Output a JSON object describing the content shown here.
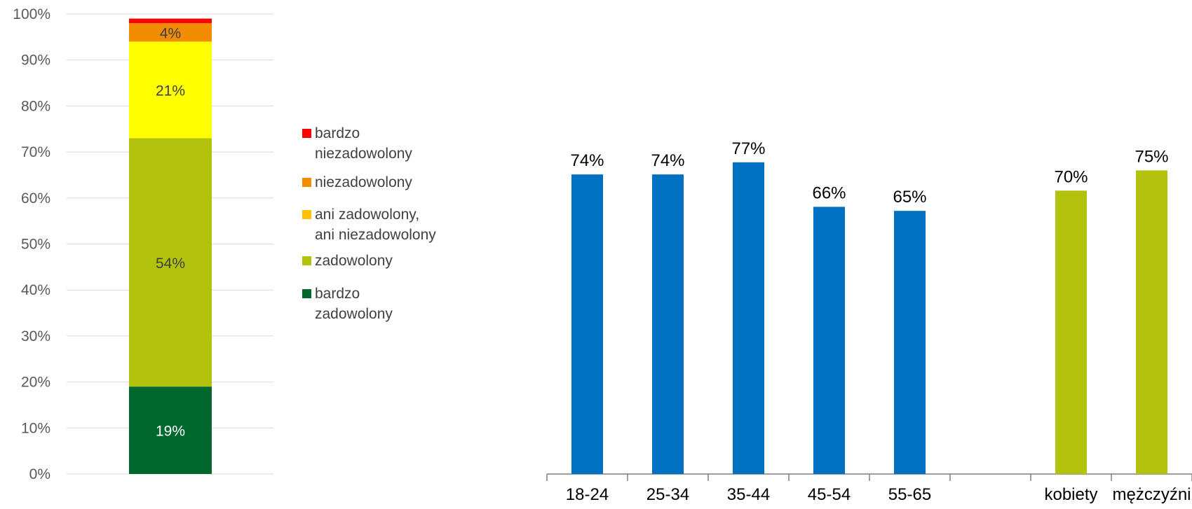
{
  "chart_data": [
    {
      "type": "bar",
      "stacked": true,
      "orientation": "vertical",
      "categories": [
        ""
      ],
      "series": [
        {
          "name": "bardzo zadowolony",
          "values": [
            19
          ],
          "label": "19%",
          "color": "#00682F"
        },
        {
          "name": "zadowolony",
          "values": [
            54
          ],
          "label": "54%",
          "color": "#B2C20D"
        },
        {
          "name": "ani zadowolony, ani niezadowolony",
          "values": [
            21
          ],
          "label": "21%",
          "color": "#FFFF00"
        },
        {
          "name": "niezadowolony",
          "values": [
            4
          ],
          "label": "4%",
          "color": "#F28C00"
        },
        {
          "name": "bardzo niezadowolony",
          "values": [
            1
          ],
          "label": "",
          "color": "#FF0000"
        }
      ],
      "ylim": [
        0,
        100
      ],
      "ytick_labels": [
        "0%",
        "10%",
        "20%",
        "30%",
        "40%",
        "50%",
        "60%",
        "70%",
        "80%",
        "90%",
        "100%"
      ],
      "grid": true,
      "legend_placement": "right",
      "legend_order": [
        "bardzo niezadowolony",
        "niezadowolony",
        "ani zadowolony, ani niezadowolony",
        "zadowolony",
        "bardzo zadowolony"
      ],
      "legend_labels": [
        {
          "key": "bardzo niezadowolony",
          "lines": [
            "bardzo",
            "niezadowolony"
          ],
          "color": "#FF0000"
        },
        {
          "key": "niezadowolony",
          "lines": [
            "niezadowolony"
          ],
          "color": "#F28C00"
        },
        {
          "key": "ani zadowolony, ani niezadowolony",
          "lines": [
            "ani zadowolony,",
            "ani niezadowolony"
          ],
          "color": "#FFC000"
        },
        {
          "key": "zadowolony",
          "lines": [
            "zadowolony"
          ],
          "color": "#B2C20D"
        },
        {
          "key": "bardzo zadowolony",
          "lines": [
            "bardzo",
            "zadowolony"
          ],
          "color": "#00682F"
        }
      ]
    },
    {
      "type": "bar",
      "categories": [
        "18-24",
        "25-34",
        "35-44",
        "45-54",
        "55-65",
        "",
        "kobiety",
        "mężczyźni"
      ],
      "values": [
        74,
        74,
        77,
        66,
        65,
        null,
        70,
        75
      ],
      "labels": [
        "74%",
        "74%",
        "77%",
        "66%",
        "65%",
        "",
        "70%",
        "75%"
      ],
      "colors": [
        "#0070C0",
        "#0070C0",
        "#0070C0",
        "#0070C0",
        "#0070C0",
        "",
        "#B2C20D",
        "#B2C20D"
      ],
      "ylim": [
        0,
        100
      ],
      "grid": false,
      "legend": false
    }
  ]
}
